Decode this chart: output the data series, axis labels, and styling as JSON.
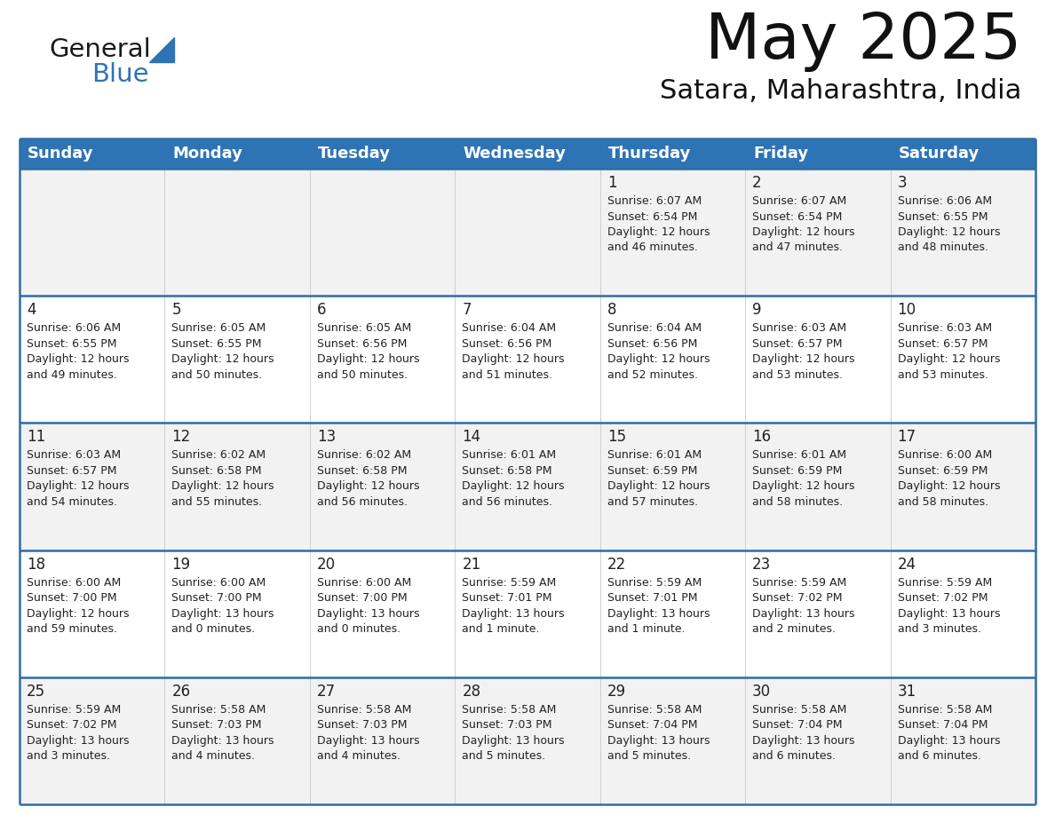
{
  "title": "May 2025",
  "subtitle": "Satara, Maharashtra, India",
  "header_bg": "#2E74B5",
  "header_text_color": "#FFFFFF",
  "day_names": [
    "Sunday",
    "Monday",
    "Tuesday",
    "Wednesday",
    "Thursday",
    "Friday",
    "Saturday"
  ],
  "cell_bg_even": "#F2F2F2",
  "cell_bg_odd": "#FFFFFF",
  "divider_color": "#2E6DA4",
  "text_color": "#222222",
  "calendar_data": [
    [
      {
        "day": "",
        "sunrise": "",
        "sunset": "",
        "daylight": ""
      },
      {
        "day": "",
        "sunrise": "",
        "sunset": "",
        "daylight": ""
      },
      {
        "day": "",
        "sunrise": "",
        "sunset": "",
        "daylight": ""
      },
      {
        "day": "",
        "sunrise": "",
        "sunset": "",
        "daylight": ""
      },
      {
        "day": "1",
        "sunrise": "6:07 AM",
        "sunset": "6:54 PM",
        "daylight": "12 hours and 46 minutes."
      },
      {
        "day": "2",
        "sunrise": "6:07 AM",
        "sunset": "6:54 PM",
        "daylight": "12 hours and 47 minutes."
      },
      {
        "day": "3",
        "sunrise": "6:06 AM",
        "sunset": "6:55 PM",
        "daylight": "12 hours and 48 minutes."
      }
    ],
    [
      {
        "day": "4",
        "sunrise": "6:06 AM",
        "sunset": "6:55 PM",
        "daylight": "12 hours and 49 minutes."
      },
      {
        "day": "5",
        "sunrise": "6:05 AM",
        "sunset": "6:55 PM",
        "daylight": "12 hours and 50 minutes."
      },
      {
        "day": "6",
        "sunrise": "6:05 AM",
        "sunset": "6:56 PM",
        "daylight": "12 hours and 50 minutes."
      },
      {
        "day": "7",
        "sunrise": "6:04 AM",
        "sunset": "6:56 PM",
        "daylight": "12 hours and 51 minutes."
      },
      {
        "day": "8",
        "sunrise": "6:04 AM",
        "sunset": "6:56 PM",
        "daylight": "12 hours and 52 minutes."
      },
      {
        "day": "9",
        "sunrise": "6:03 AM",
        "sunset": "6:57 PM",
        "daylight": "12 hours and 53 minutes."
      },
      {
        "day": "10",
        "sunrise": "6:03 AM",
        "sunset": "6:57 PM",
        "daylight": "12 hours and 53 minutes."
      }
    ],
    [
      {
        "day": "11",
        "sunrise": "6:03 AM",
        "sunset": "6:57 PM",
        "daylight": "12 hours and 54 minutes."
      },
      {
        "day": "12",
        "sunrise": "6:02 AM",
        "sunset": "6:58 PM",
        "daylight": "12 hours and 55 minutes."
      },
      {
        "day": "13",
        "sunrise": "6:02 AM",
        "sunset": "6:58 PM",
        "daylight": "12 hours and 56 minutes."
      },
      {
        "day": "14",
        "sunrise": "6:01 AM",
        "sunset": "6:58 PM",
        "daylight": "12 hours and 56 minutes."
      },
      {
        "day": "15",
        "sunrise": "6:01 AM",
        "sunset": "6:59 PM",
        "daylight": "12 hours and 57 minutes."
      },
      {
        "day": "16",
        "sunrise": "6:01 AM",
        "sunset": "6:59 PM",
        "daylight": "12 hours and 58 minutes."
      },
      {
        "day": "17",
        "sunrise": "6:00 AM",
        "sunset": "6:59 PM",
        "daylight": "12 hours and 58 minutes."
      }
    ],
    [
      {
        "day": "18",
        "sunrise": "6:00 AM",
        "sunset": "7:00 PM",
        "daylight": "12 hours and 59 minutes."
      },
      {
        "day": "19",
        "sunrise": "6:00 AM",
        "sunset": "7:00 PM",
        "daylight": "13 hours and 0 minutes."
      },
      {
        "day": "20",
        "sunrise": "6:00 AM",
        "sunset": "7:00 PM",
        "daylight": "13 hours and 0 minutes."
      },
      {
        "day": "21",
        "sunrise": "5:59 AM",
        "sunset": "7:01 PM",
        "daylight": "13 hours and 1 minute."
      },
      {
        "day": "22",
        "sunrise": "5:59 AM",
        "sunset": "7:01 PM",
        "daylight": "13 hours and 1 minute."
      },
      {
        "day": "23",
        "sunrise": "5:59 AM",
        "sunset": "7:02 PM",
        "daylight": "13 hours and 2 minutes."
      },
      {
        "day": "24",
        "sunrise": "5:59 AM",
        "sunset": "7:02 PM",
        "daylight": "13 hours and 3 minutes."
      }
    ],
    [
      {
        "day": "25",
        "sunrise": "5:59 AM",
        "sunset": "7:02 PM",
        "daylight": "13 hours and 3 minutes."
      },
      {
        "day": "26",
        "sunrise": "5:58 AM",
        "sunset": "7:03 PM",
        "daylight": "13 hours and 4 minutes."
      },
      {
        "day": "27",
        "sunrise": "5:58 AM",
        "sunset": "7:03 PM",
        "daylight": "13 hours and 4 minutes."
      },
      {
        "day": "28",
        "sunrise": "5:58 AM",
        "sunset": "7:03 PM",
        "daylight": "13 hours and 5 minutes."
      },
      {
        "day": "29",
        "sunrise": "5:58 AM",
        "sunset": "7:04 PM",
        "daylight": "13 hours and 5 minutes."
      },
      {
        "day": "30",
        "sunrise": "5:58 AM",
        "sunset": "7:04 PM",
        "daylight": "13 hours and 6 minutes."
      },
      {
        "day": "31",
        "sunrise": "5:58 AM",
        "sunset": "7:04 PM",
        "daylight": "13 hours and 6 minutes."
      }
    ]
  ],
  "logo_general_color": "#1a1a1a",
  "logo_blue_color": "#2E74B5",
  "logo_triangle_color": "#2E74B5"
}
